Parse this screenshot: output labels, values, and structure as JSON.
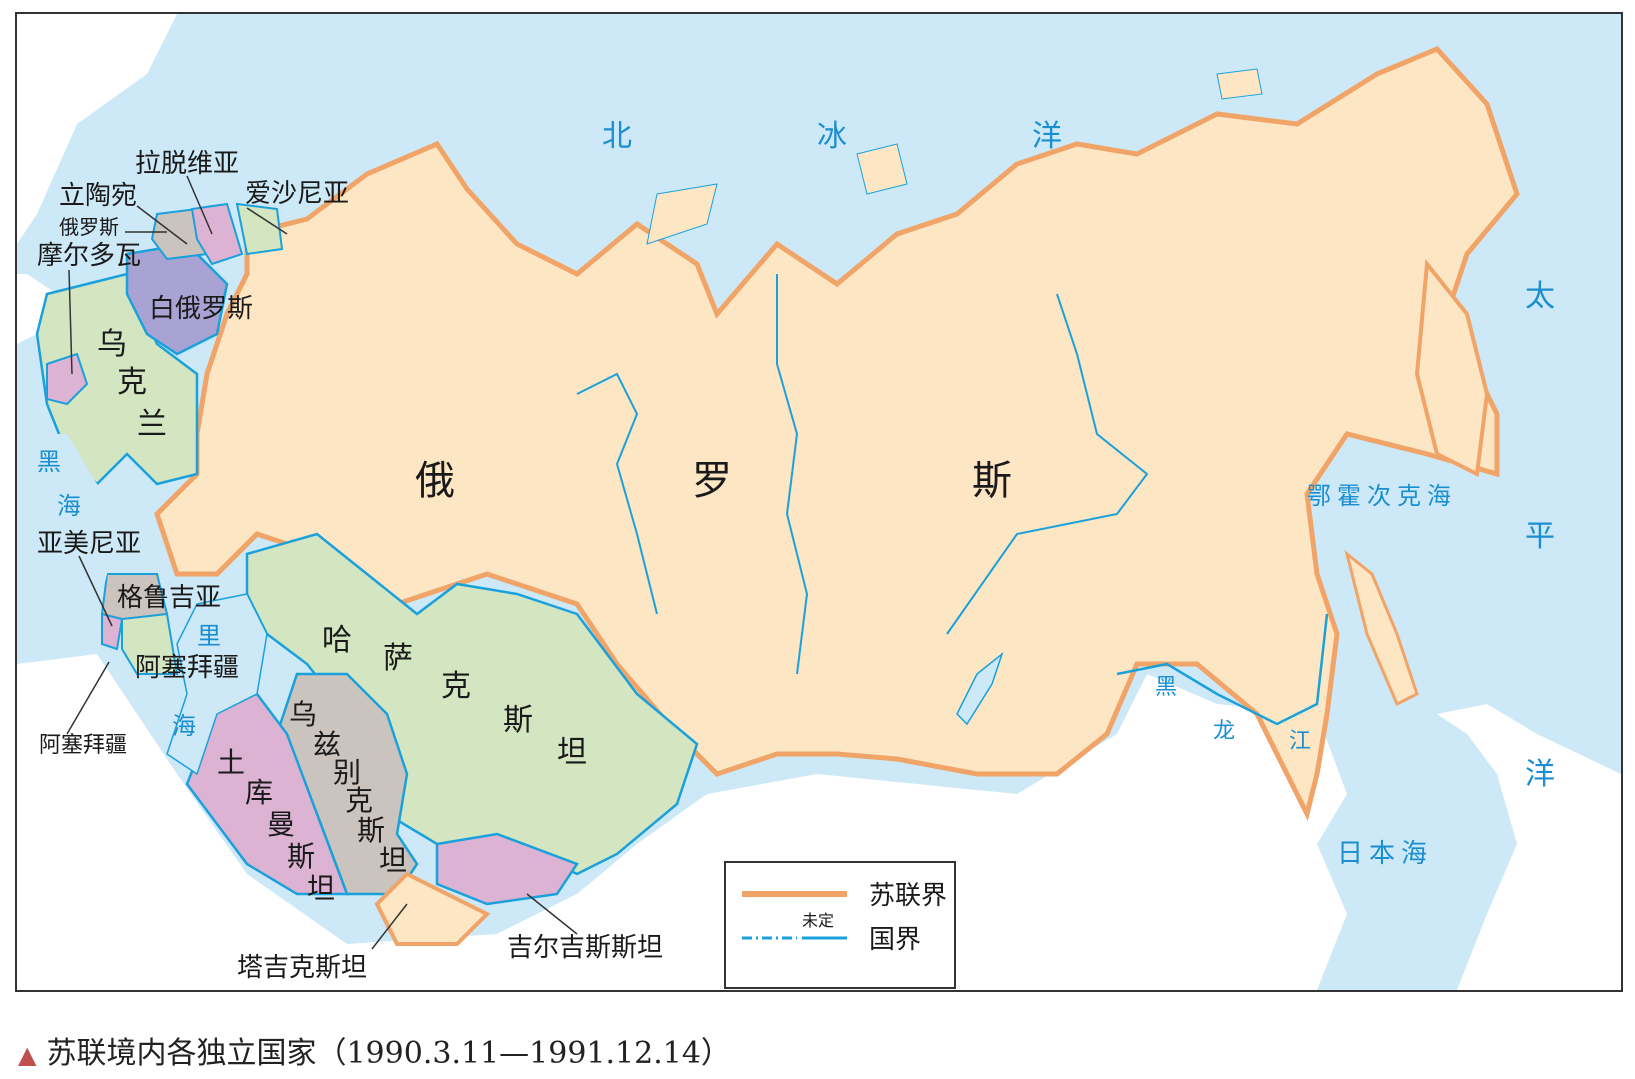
{
  "labels": {
    "latvia": "拉脱维亚",
    "estonia": "爱沙尼亚",
    "lithuania": "立陶宛",
    "russia_enclave": "俄罗斯",
    "moldova": "摩尔多瓦",
    "belarus": "白俄罗斯",
    "ukraine": [
      "乌",
      "克",
      "兰"
    ],
    "russia": [
      "俄",
      "罗",
      "斯"
    ],
    "armenia": "亚美尼亚",
    "georgia": "格鲁吉亚",
    "azerbaijan": "阿塞拜疆",
    "azerbaijan_exclave": "阿塞拜疆",
    "kazakhstan": [
      "哈",
      "萨",
      "克",
      "斯",
      "坦"
    ],
    "uzbekistan": [
      "乌",
      "兹",
      "别",
      "克",
      "斯",
      "坦"
    ],
    "turkmenistan": [
      "土",
      "库",
      "曼",
      "斯",
      "坦"
    ],
    "kyrgyzstan": "吉尔吉斯斯坦",
    "tajikistan": "塔吉克斯坦"
  },
  "seas": {
    "arctic": [
      "北",
      "冰",
      "洋"
    ],
    "pacific": [
      "太",
      "平",
      "洋"
    ],
    "okhotsk": "鄂霍次克海",
    "japan": "日本海",
    "black_sea": [
      "黑",
      "海"
    ],
    "caspian": [
      "里",
      "海"
    ],
    "amur": [
      "黑",
      "龙",
      "江"
    ]
  },
  "legend": {
    "soviet_border": "苏联界",
    "undetermined": "未定",
    "national_border": "国界"
  },
  "caption": "苏联境内各独立国家（1990.3.11—1991.12.14）",
  "colors": {
    "sea": "#cde9f7",
    "russia": "#fde6c4",
    "green": "#d3e5c1",
    "pink": "#ddb3d4",
    "purple": "#a9a3d4",
    "gray": "#cbc3bd",
    "soviet_border": "#f0a468",
    "national_border": "#1aa1dc",
    "outside": "#ffffff"
  }
}
